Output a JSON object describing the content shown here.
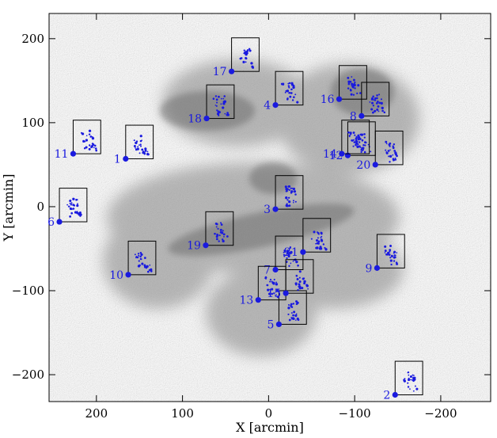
{
  "chart_data": {
    "type": "scatter",
    "title": "",
    "xlabel": "X [arcmin]",
    "ylabel": "Y [arcmin]",
    "xlim": [
      255,
      -258
    ],
    "ylim": [
      -232,
      230
    ],
    "x_reversed": true,
    "x_ticks": [
      200,
      100,
      0,
      -100,
      -200
    ],
    "y_ticks": [
      200,
      100,
      0,
      -100,
      -200
    ],
    "x_tick_labels": [
      "200",
      "100",
      "0",
      "−100",
      "−200"
    ],
    "y_tick_labels": [
      "200",
      "100",
      "0",
      "−100",
      "−200"
    ],
    "box_size": [
      32,
      40
    ],
    "background": "greyscale sky map",
    "marker_color": "#1a1adf",
    "box_color": "#000000",
    "fields": [
      {
        "label": "1",
        "x": 166,
        "y": 57
      },
      {
        "label": "2",
        "x": -147,
        "y": -224
      },
      {
        "label": "3",
        "x": -8,
        "y": -3
      },
      {
        "label": "4",
        "x": -8,
        "y": 121
      },
      {
        "label": "5",
        "x": -12,
        "y": -140
      },
      {
        "label": "6",
        "x": 243,
        "y": -18
      },
      {
        "label": "7",
        "x": -8,
        "y": -75
      },
      {
        "label": "8",
        "x": -108,
        "y": 108
      },
      {
        "label": "9",
        "x": -126,
        "y": -73
      },
      {
        "label": "10",
        "x": 163,
        "y": -81
      },
      {
        "label": "11",
        "x": 227,
        "y": 63
      },
      {
        "label": "12",
        "x": -92,
        "y": 61
      },
      {
        "label": "13",
        "x": 12,
        "y": -111
      },
      {
        "label": "14",
        "x": -85,
        "y": 63
      },
      {
        "label": "15",
        "x": -20,
        "y": -103
      },
      {
        "label": "16",
        "x": -82,
        "y": 128
      },
      {
        "label": "17",
        "x": 43,
        "y": 161
      },
      {
        "label": "18",
        "x": 72,
        "y": 105
      },
      {
        "label": "19",
        "x": 73,
        "y": -46
      },
      {
        "label": "20",
        "x": -124,
        "y": 50
      },
      {
        "label": "21",
        "x": -40,
        "y": -54
      }
    ],
    "grid": false,
    "legend": "none"
  }
}
